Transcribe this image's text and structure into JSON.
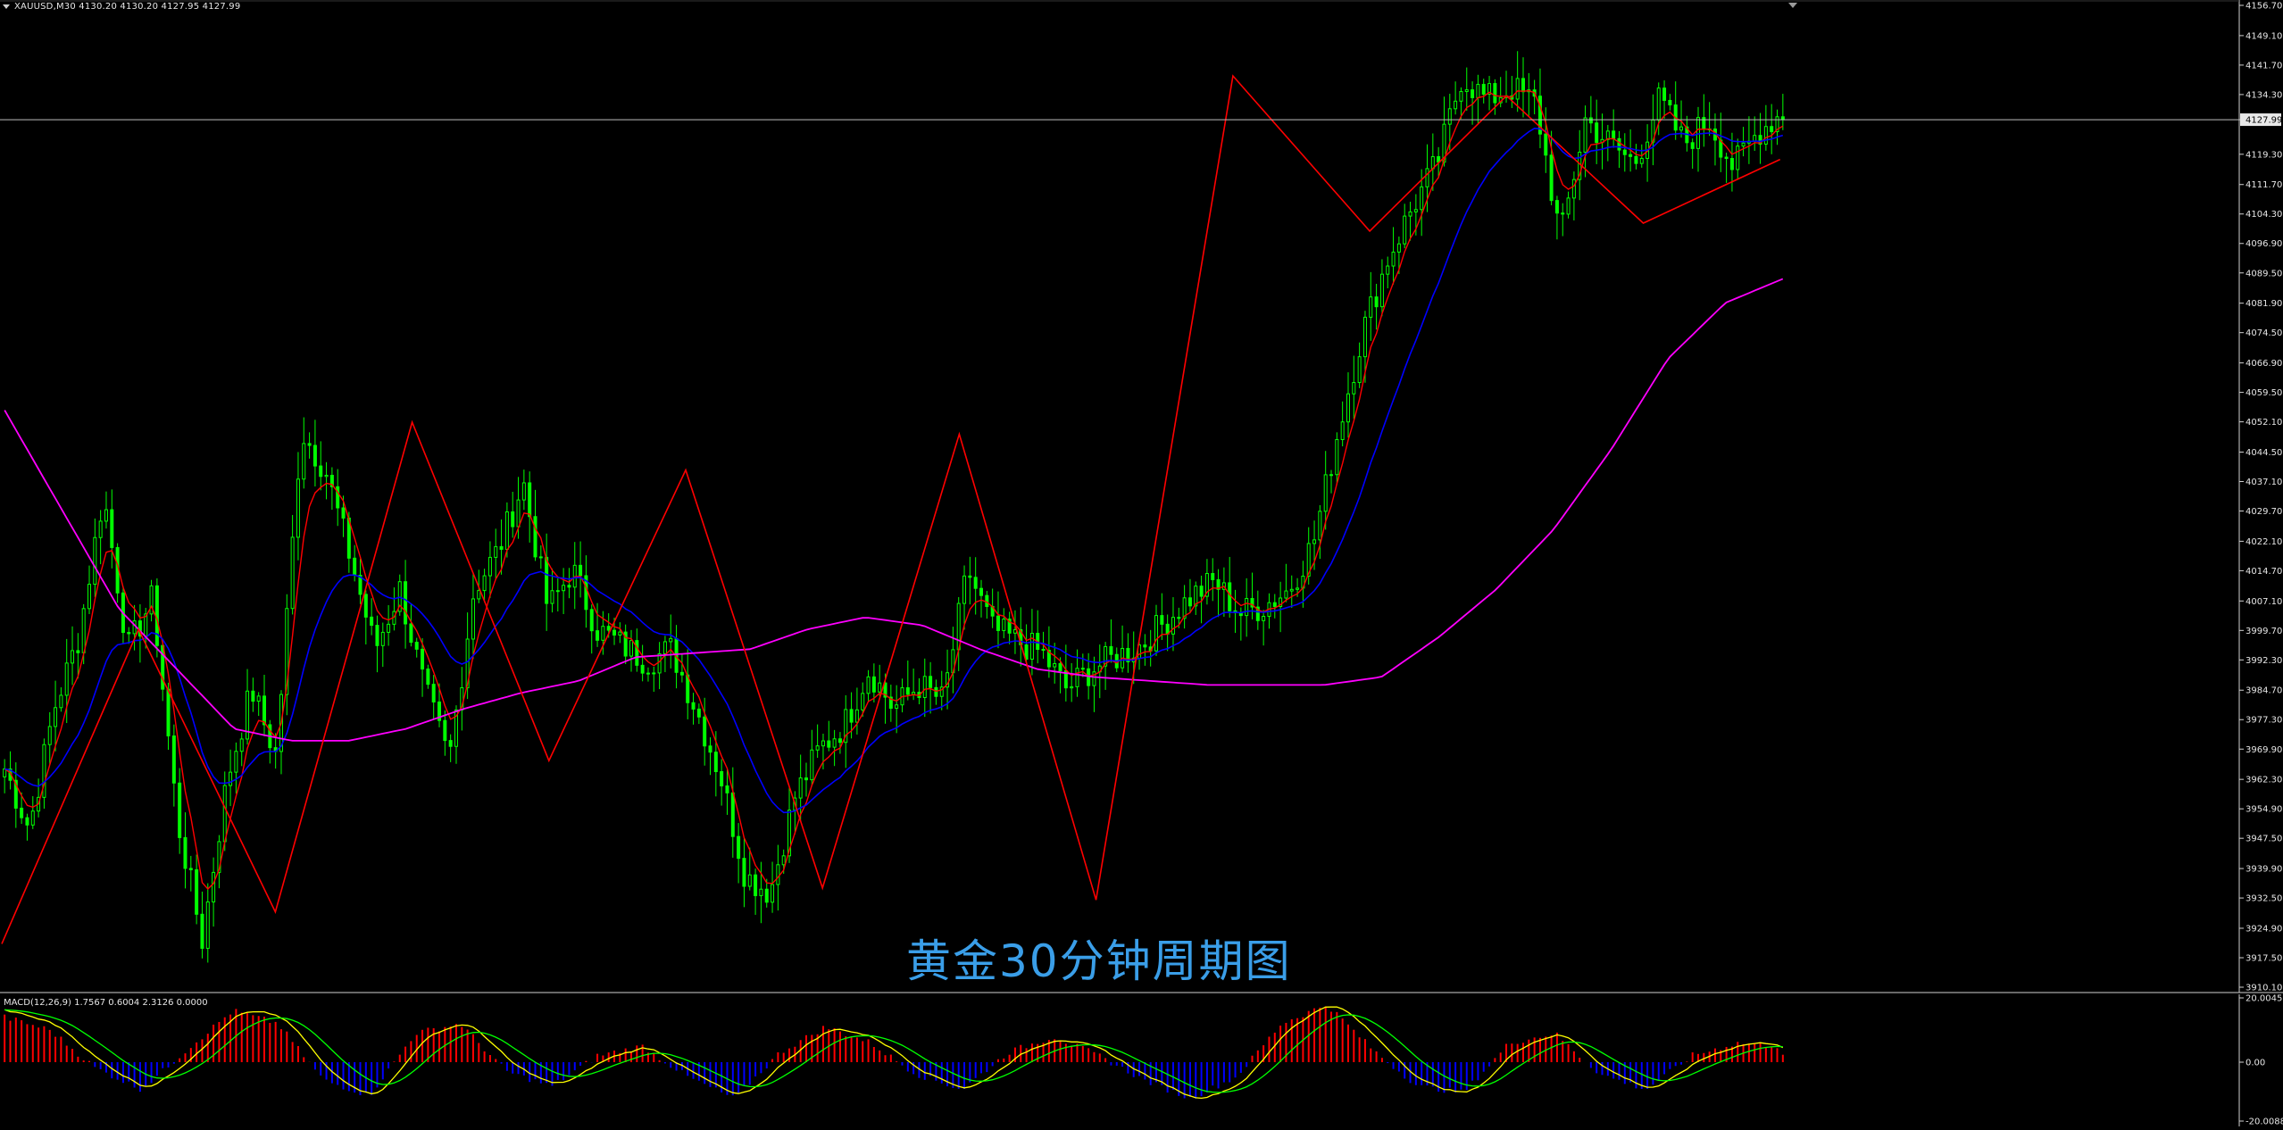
{
  "header": {
    "symbol_text": "XAUUSD,M30  4130.20 4130.20 4127.95 4127.99"
  },
  "caption": "黄金30分钟周期图",
  "macd_label": "MACD(12,26,9) 1.7567 0.6004 2.3126 0.0000",
  "colors": {
    "background": "#000000",
    "candle_up": "#00ff00",
    "candle_down": "#00ff00",
    "fast_ma": "#ff0000",
    "mid_ma": "#0000ff",
    "slow_ma": "#ff00ff",
    "zigzag": "#ff0000",
    "macd_pos": "#ff0000",
    "macd_neg": "#0000ff",
    "macd_line": "#ffff00",
    "signal_line": "#00ff00",
    "axis_text": "#e6e6e6",
    "caption": "#3a9ee8"
  },
  "chart_data": [
    {
      "type": "candlestick",
      "symbol": "XAUUSD",
      "timeframe": "M30",
      "ohlc_last": {
        "open": 4130.2,
        "high": 4130.2,
        "low": 4127.95,
        "close": 4127.99
      },
      "current_price": 4127.99,
      "ylim": [
        3910.1,
        4156.7
      ],
      "y_ticks": [
        "4156.70",
        "4149.10",
        "4141.70",
        "4134.30",
        "4127.99",
        "4119.30",
        "4111.70",
        "4104.30",
        "4096.90",
        "4089.50",
        "4081.90",
        "4074.50",
        "4066.90",
        "4059.50",
        "4052.10",
        "4044.50",
        "4037.10",
        "4029.70",
        "4022.10",
        "4014.70",
        "4007.10",
        "3999.70",
        "3992.30",
        "3984.70",
        "3977.30",
        "3969.90",
        "3962.30",
        "3954.90",
        "3947.50",
        "3939.90",
        "3932.50",
        "3924.90",
        "3917.50",
        "3910.10"
      ],
      "zigzag": [
        3921,
        4000,
        3929,
        4052,
        3967,
        4040,
        3935,
        4049,
        3932,
        4139,
        4100,
        4134,
        4102,
        4118
      ],
      "price_path_keypoints": [
        3965,
        3950,
        3980,
        3998,
        4034,
        3995,
        4008,
        3952,
        3922,
        3962,
        3985,
        3968,
        4050,
        4040,
        4018,
        3995,
        4010,
        3985,
        3967,
        4010,
        4020,
        4037,
        4005,
        4015,
        4000,
        3996,
        3992,
        3995,
        3980,
        3963,
        3938,
        3934,
        3958,
        3970,
        3976,
        3990,
        3980,
        3986,
        3982,
        4015,
        4000,
        3997,
        3994,
        3985,
        3990,
        3993,
        3996,
        4002,
        4008,
        4012,
        4004,
        4006,
        4010,
        4022,
        4050,
        4075,
        4093,
        4106,
        4117,
        4139,
        4133,
        4136,
        4132,
        4098,
        4128,
        4122,
        4117,
        4133,
        4122,
        4128,
        4116,
        4125,
        4130
      ],
      "series": [
        {
          "name": "",
          "kind": "fast_ma"
        },
        {
          "name": "",
          "kind": "mid_ma"
        },
        {
          "name": "",
          "kind": "slow_ma",
          "values": [
            4055,
            4030,
            4005,
            3990,
            3975,
            3972,
            3972,
            3975,
            3980,
            3984,
            3987,
            3993,
            3994,
            3995,
            4000,
            4003,
            4001,
            3995,
            3990,
            3988,
            3987,
            3986,
            3986,
            3986,
            3988,
            3998,
            4010,
            4025,
            4045,
            4068,
            4082,
            4088
          ]
        }
      ]
    },
    {
      "type": "macd",
      "params": [
        12,
        26,
        9
      ],
      "values": {
        "main": 1.7567,
        "signal": 0.6004,
        "hist": 2.3126
      },
      "ylim": [
        -20.0088,
        20.0045
      ],
      "y_ticks": [
        "20.0045",
        "0.00",
        "-20.0088"
      ],
      "hist_keypoints": [
        14,
        10,
        -2,
        -9,
        4,
        16,
        12,
        -6,
        -11,
        9,
        12,
        -3,
        -8,
        2,
        5,
        -5,
        -12,
        3,
        11,
        6,
        -4,
        -9,
        3,
        8,
        2,
        -6,
        -12,
        -5,
        12,
        18,
        4,
        -8,
        -10,
        6,
        9,
        -4,
        -9,
        2,
        6,
        5
      ]
    }
  ]
}
